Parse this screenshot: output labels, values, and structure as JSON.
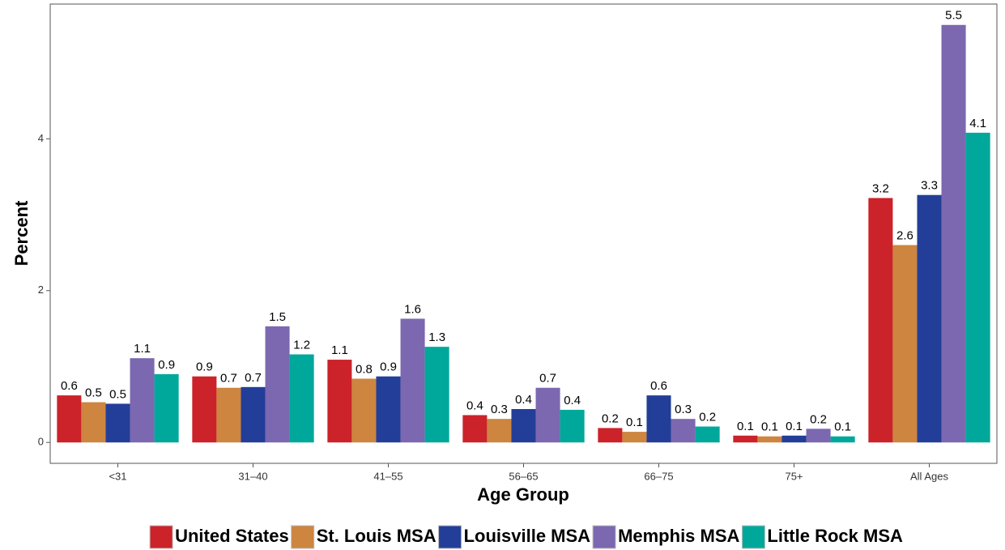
{
  "chart_data": {
    "type": "bar",
    "x_label": "Age Group",
    "y_label": "Percent",
    "categories": [
      "<31",
      "31–40",
      "41–55",
      "56–65",
      "66–75",
      "75+",
      "All Ages"
    ],
    "series": [
      {
        "name": "United States",
        "color": "#cc2229",
        "values": [
          0.62,
          0.87,
          1.09,
          0.36,
          0.19,
          0.09,
          3.22
        ],
        "value_labels": [
          "0.6",
          "0.9",
          "1.1",
          "0.4",
          "0.2",
          "0.1",
          "3.2"
        ]
      },
      {
        "name": "St. Louis MSA",
        "color": "#cd853f",
        "values": [
          0.53,
          0.72,
          0.84,
          0.31,
          0.14,
          0.08,
          2.6
        ],
        "value_labels": [
          "0.5",
          "0.7",
          "0.8",
          "0.3",
          "0.1",
          "0.1",
          "2.6"
        ]
      },
      {
        "name": "Louisville MSA",
        "color": "#233e99",
        "values": [
          0.51,
          0.73,
          0.87,
          0.44,
          0.62,
          0.09,
          3.26
        ],
        "value_labels": [
          "0.5",
          "0.7",
          "0.9",
          "0.4",
          "0.6",
          "0.1",
          "3.3"
        ]
      },
      {
        "name": "Memphis MSA",
        "color": "#7b68b0",
        "values": [
          1.11,
          1.53,
          1.63,
          0.72,
          0.31,
          0.18,
          5.5
        ],
        "value_labels": [
          "1.1",
          "1.5",
          "1.6",
          "0.7",
          "0.3",
          "0.2",
          "5.5"
        ]
      },
      {
        "name": "Little Rock MSA",
        "color": "#00a89b",
        "values": [
          0.9,
          1.16,
          1.26,
          0.43,
          0.21,
          0.08,
          4.08
        ],
        "value_labels": [
          "0.9",
          "1.2",
          "1.3",
          "0.4",
          "0.2",
          "0.1",
          "4.1"
        ]
      }
    ],
    "ylim": [
      -0.275,
      5.775
    ],
    "yticks": [
      0,
      2,
      4
    ],
    "grid": false,
    "legend_position": "bottom"
  }
}
